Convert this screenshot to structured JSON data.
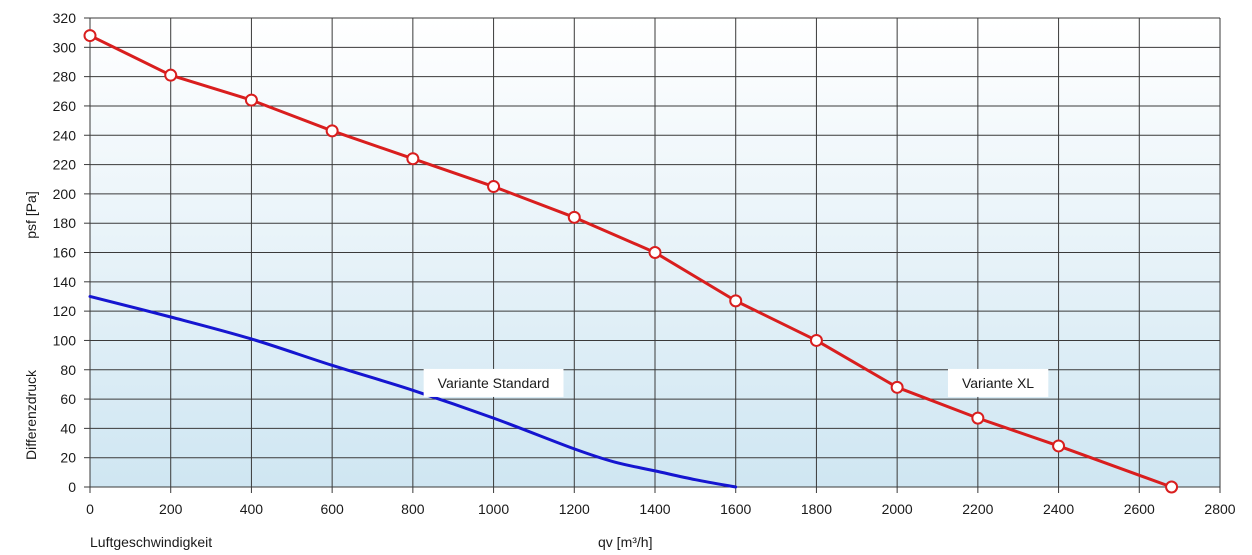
{
  "chart_data": {
    "type": "line",
    "xlabel_left": "Luftgeschwindigkeit",
    "xlabel_units": "qv [m³/h]",
    "ylabel_main": "psf [Pa]",
    "ylabel_secondary": "Differenzdruck",
    "xlim": [
      0,
      2800
    ],
    "ylim": [
      0,
      320
    ],
    "x_ticks": [
      0,
      200,
      400,
      600,
      800,
      1000,
      1200,
      1400,
      1600,
      1800,
      2000,
      2200,
      2400,
      2600,
      2800
    ],
    "y_ticks": [
      0,
      20,
      40,
      60,
      80,
      100,
      120,
      140,
      160,
      180,
      200,
      220,
      240,
      260,
      280,
      300,
      320
    ],
    "grid": true,
    "background_gradient": [
      "#ffffff",
      "#cfe6f2"
    ],
    "series": [
      {
        "name": "Variante Standard",
        "color": "#1515d0",
        "markers": false,
        "label_anchor": {
          "x": 1000,
          "y": 71
        },
        "x": [
          0,
          200,
          400,
          600,
          800,
          1000,
          1200,
          1300,
          1400,
          1500,
          1600
        ],
        "y": [
          130,
          116,
          101,
          83,
          66,
          47,
          26,
          17,
          11,
          5,
          0
        ]
      },
      {
        "name": "Variante XL",
        "color": "#d91e1e",
        "markers": true,
        "label_anchor": {
          "x": 2250,
          "y": 71
        },
        "x": [
          0,
          200,
          400,
          600,
          800,
          1000,
          1200,
          1400,
          1600,
          1800,
          2000,
          2200,
          2400,
          2680
        ],
        "y": [
          308,
          281,
          264,
          243,
          224,
          205,
          184,
          160,
          127,
          100,
          68,
          47,
          28,
          0
        ]
      }
    ]
  }
}
